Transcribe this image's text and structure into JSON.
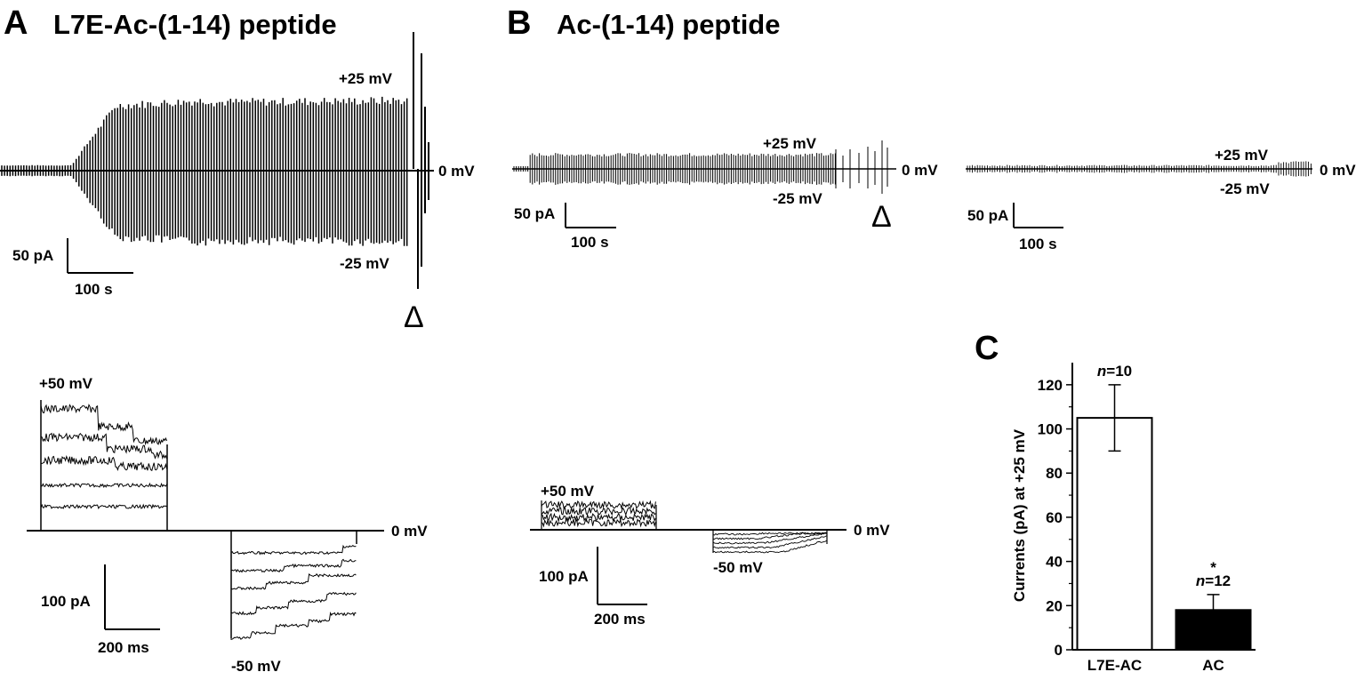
{
  "panels": {
    "a": {
      "letter": "A",
      "title": "L7E-Ac-(1-14) peptide"
    },
    "b": {
      "letter": "B",
      "title": "Ac-(1-14) peptide"
    },
    "c": {
      "letter": "C"
    }
  },
  "traces": {
    "a_top": {
      "v_pos": "+25 mV",
      "v_zero": "0 mV",
      "v_neg": "-25 mV",
      "arrow": "Δ",
      "scale_y": "50 pA",
      "scale_x": "100 s"
    },
    "b_top1": {
      "v_pos": "+25 mV",
      "v_zero": "0 mV",
      "v_neg": "-25 mV",
      "arrow": "Δ",
      "scale_y": "50 pA",
      "scale_x": "100 s"
    },
    "b_top2": {
      "v_pos": "+25 mV",
      "v_zero": "0 mV",
      "v_neg": "-25 mV",
      "scale_y": "50 pA",
      "scale_x": "100 s"
    },
    "a_bottom": {
      "v_pos": "+50 mV",
      "v_zero": "0 mV",
      "v_neg": "-50 mV",
      "scale_y": "100 pA",
      "scale_x": "200 ms"
    },
    "b_bottom": {
      "v_pos": "+50 mV",
      "v_zero": "0 mV",
      "v_neg": "-50 mV",
      "scale_y": "100 pA",
      "scale_x": "200 ms"
    }
  },
  "chart_data": {
    "type": "bar",
    "categories": [
      "L7E-AC",
      "AC"
    ],
    "values": [
      105,
      18
    ],
    "errors": [
      15,
      7
    ],
    "n_labels": [
      "n=10",
      "n=12"
    ],
    "significance": [
      "",
      "*"
    ],
    "bar_fill": [
      "#ffffff",
      "#000000"
    ],
    "ylabel": "Currents (pA) at +25 mV",
    "ylim": [
      0,
      130
    ],
    "yticks": [
      0,
      20,
      40,
      60,
      80,
      100,
      120
    ],
    "ytick_labels": [
      "0",
      "20",
      "40",
      "60",
      "80",
      "100",
      "120"
    ]
  }
}
